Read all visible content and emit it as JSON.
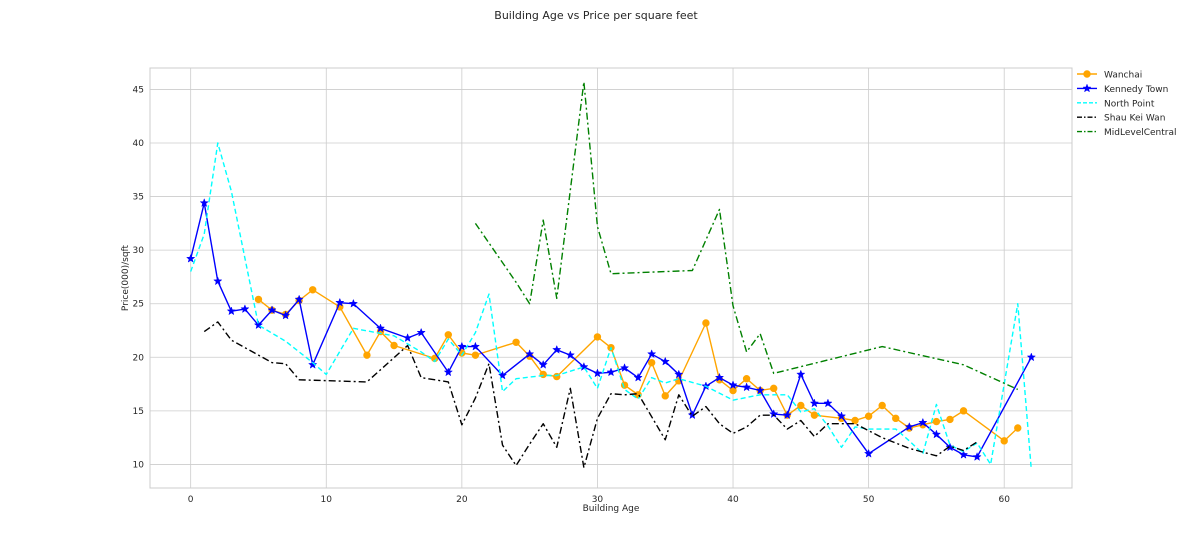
{
  "chart_data": {
    "type": "line",
    "title": "Building Age vs Price per square feet",
    "xlabel": "Building Age",
    "ylabel": "Price(000)/sqft",
    "xlim": [
      -3,
      65
    ],
    "ylim": [
      7.8,
      47
    ],
    "xticks": [
      0,
      10,
      20,
      30,
      40,
      50,
      60
    ],
    "yticks": [
      10,
      15,
      20,
      25,
      30,
      35,
      40,
      45
    ],
    "grid": true,
    "legend_position": "outside-top-right",
    "series": [
      {
        "name": "Wanchai",
        "color": "#ffa500",
        "dash": "solid",
        "marker": "circle",
        "x": [
          5,
          6,
          7,
          8,
          9,
          11,
          13,
          14,
          15,
          18,
          19,
          20,
          21,
          24,
          25,
          26,
          27,
          30,
          31,
          32,
          33,
          34,
          35,
          36,
          38,
          39,
          40,
          41,
          42,
          43,
          44,
          45,
          46,
          48,
          49,
          50,
          51,
          52,
          53,
          54,
          55,
          56,
          57,
          60,
          61
        ],
        "y": [
          25.4,
          24.4,
          24.0,
          25.3,
          26.3,
          24.7,
          20.2,
          22.4,
          21.1,
          19.9,
          22.1,
          20.4,
          20.2,
          21.4,
          20.1,
          18.4,
          18.2,
          21.9,
          20.9,
          17.4,
          16.5,
          19.5,
          16.4,
          17.8,
          23.2,
          17.9,
          16.9,
          18.0,
          16.9,
          17.1,
          14.6,
          15.5,
          14.6,
          14.3,
          14.1,
          14.5,
          15.5,
          14.3,
          13.4,
          13.7,
          14.0,
          14.2,
          15.0,
          12.2,
          13.4
        ]
      },
      {
        "name": "Kennedy Town",
        "color": "#0000ff",
        "dash": "solid",
        "marker": "star",
        "x": [
          0,
          1,
          2,
          3,
          4,
          5,
          6,
          7,
          8,
          9,
          11,
          12,
          14,
          16,
          17,
          19,
          20,
          21,
          23,
          25,
          26,
          27,
          28,
          29,
          30,
          31,
          32,
          33,
          34,
          35,
          36,
          37,
          38,
          39,
          40,
          41,
          42,
          43,
          44,
          45,
          46,
          47,
          48,
          50,
          53,
          54,
          55,
          56,
          57,
          58,
          62
        ],
        "y": [
          29.2,
          34.4,
          27.1,
          24.3,
          24.5,
          23.0,
          24.4,
          23.9,
          25.4,
          19.3,
          25.1,
          25.0,
          22.7,
          21.8,
          22.3,
          18.6,
          21.0,
          21.0,
          18.3,
          20.3,
          19.3,
          20.7,
          20.2,
          19.1,
          18.5,
          18.6,
          19.0,
          18.1,
          20.3,
          19.6,
          18.4,
          14.6,
          17.3,
          18.1,
          17.4,
          17.2,
          16.9,
          14.7,
          14.6,
          18.4,
          15.7,
          15.7,
          14.5,
          11.0,
          13.5,
          13.9,
          12.8,
          11.6,
          10.9,
          10.7,
          20.0
        ]
      },
      {
        "name": "North Point",
        "color": "#00ffff",
        "dash": "dashed",
        "marker": "none",
        "x": [
          0,
          1,
          2,
          3,
          5,
          7,
          9,
          10,
          12,
          15,
          17,
          18,
          19,
          20,
          21,
          22,
          23,
          24,
          26,
          27,
          29,
          30,
          31,
          32,
          33,
          34,
          35,
          36,
          38,
          40,
          42,
          44,
          45,
          46,
          47,
          48,
          49,
          50,
          51,
          52,
          53,
          54,
          55,
          56,
          57,
          58,
          59,
          61,
          62
        ],
        "y": [
          28.0,
          31.5,
          40.0,
          35.5,
          23.0,
          21.5,
          19.5,
          18.4,
          22.7,
          22.0,
          20.5,
          19.6,
          21.7,
          20.2,
          22.3,
          25.9,
          16.8,
          18.0,
          18.3,
          18.3,
          19.1,
          17.1,
          20.9,
          17.0,
          16.1,
          18.1,
          17.6,
          18.0,
          17.3,
          16.0,
          16.5,
          16.5,
          14.9,
          15.2,
          13.6,
          11.6,
          13.5,
          13.3,
          13.3,
          13.3,
          12.2,
          11.0,
          15.6,
          11.8,
          11.2,
          12.0,
          10.0,
          25.0,
          9.5
        ]
      },
      {
        "name": "Shau Kei Wan",
        "color": "#000000",
        "dash": "dashdot",
        "marker": "none",
        "x": [
          1,
          2,
          3,
          4,
          5,
          6,
          7,
          8,
          13,
          16,
          17,
          19,
          20,
          21,
          22,
          23,
          24,
          25,
          26,
          27,
          28,
          29,
          30,
          31,
          32,
          33,
          35,
          36,
          37,
          38,
          39,
          40,
          41,
          42,
          43,
          44,
          45,
          46,
          47,
          49,
          51,
          53,
          55,
          56,
          57,
          58
        ],
        "y": [
          22.4,
          23.3,
          21.6,
          20.9,
          20.2,
          19.5,
          19.4,
          17.9,
          17.7,
          21.1,
          18.1,
          17.7,
          13.7,
          16.2,
          19.4,
          11.8,
          9.9,
          11.9,
          13.8,
          11.6,
          17.1,
          9.7,
          14.3,
          16.6,
          16.5,
          16.6,
          12.3,
          16.5,
          14.5,
          15.4,
          13.8,
          12.9,
          13.5,
          14.6,
          14.6,
          13.3,
          14.1,
          12.6,
          13.8,
          13.8,
          12.5,
          11.5,
          10.8,
          11.7,
          11.3,
          12.1
        ]
      },
      {
        "name": "MidLevelCentral",
        "color": "#008000",
        "dash": "dashdot",
        "marker": "none",
        "x": [
          21,
          24,
          25,
          26,
          27,
          29,
          30,
          31,
          37,
          39,
          40,
          41,
          42,
          43,
          51,
          57,
          61
        ],
        "y": [
          32.5,
          27.0,
          25.0,
          32.8,
          25.5,
          45.7,
          32.2,
          27.8,
          28.1,
          33.8,
          24.8,
          20.5,
          22.2,
          18.5,
          21.0,
          19.3,
          17.0
        ]
      }
    ]
  }
}
